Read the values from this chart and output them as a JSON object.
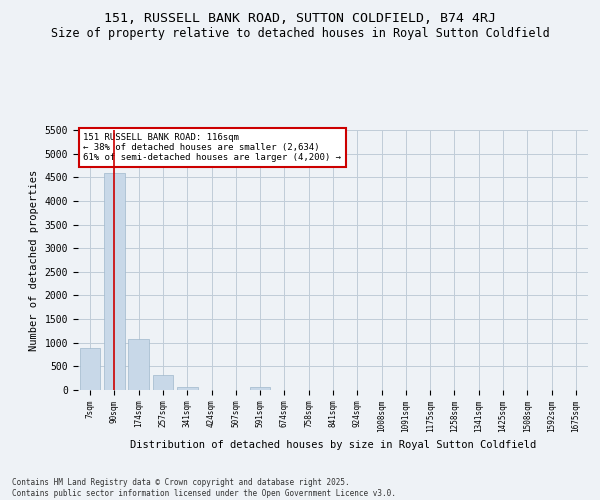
{
  "title": "151, RUSSELL BANK ROAD, SUTTON COLDFIELD, B74 4RJ",
  "subtitle": "Size of property relative to detached houses in Royal Sutton Coldfield",
  "xlabel": "Distribution of detached houses by size in Royal Sutton Coldfield",
  "ylabel": "Number of detached properties",
  "bar_color": "#c8d8e8",
  "bar_edge_color": "#a0b8cc",
  "vline_color": "#cc0000",
  "vline_x": 1,
  "annotation_text": "151 RUSSELL BANK ROAD: 116sqm\n← 38% of detached houses are smaller (2,634)\n61% of semi-detached houses are larger (4,200) →",
  "annotation_box_color": "#cc0000",
  "categories": [
    "7sqm",
    "90sqm",
    "174sqm",
    "257sqm",
    "341sqm",
    "424sqm",
    "507sqm",
    "591sqm",
    "674sqm",
    "758sqm",
    "841sqm",
    "924sqm",
    "1008sqm",
    "1091sqm",
    "1175sqm",
    "1258sqm",
    "1341sqm",
    "1425sqm",
    "1508sqm",
    "1592sqm",
    "1675sqm"
  ],
  "values": [
    880,
    4580,
    1080,
    310,
    65,
    0,
    0,
    55,
    0,
    0,
    0,
    0,
    0,
    0,
    0,
    0,
    0,
    0,
    0,
    0,
    0
  ],
  "ylim": [
    0,
    5500
  ],
  "yticks": [
    0,
    500,
    1000,
    1500,
    2000,
    2500,
    3000,
    3500,
    4000,
    4500,
    5000,
    5500
  ],
  "footer_text": "Contains HM Land Registry data © Crown copyright and database right 2025.\nContains public sector information licensed under the Open Government Licence v3.0.",
  "background_color": "#eef2f6",
  "plot_background": "#eef2f6",
  "grid_color": "#c0ccd8",
  "title_fontsize": 9.5,
  "subtitle_fontsize": 8.5
}
